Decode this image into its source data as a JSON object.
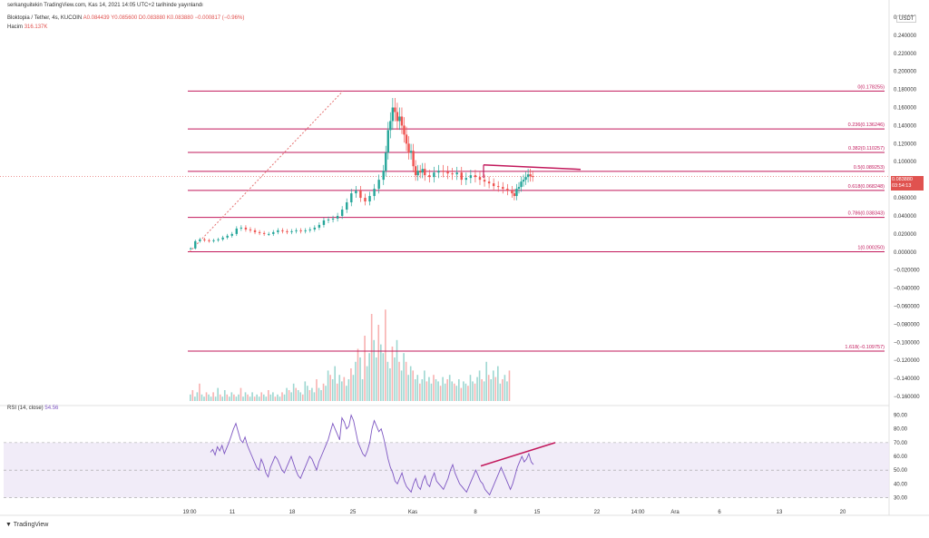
{
  "header": {
    "published": "serkanguitekin TradingView.com, Kas 14, 2021 14:05 UTC+2 tarihinde yayınlandı",
    "symbol": "Bloktopia / Tether, 4s, KUCOIN",
    "ohlc": "A0.084439 Y0.085600 D0.083880 K0.083880 −0.000817 (−0.96%)",
    "volume_label": "Hacim",
    "volume_value": "316.137K"
  },
  "currency_badge": "USDT",
  "last_price": {
    "value": "0.083880",
    "countdown": "03:54:13"
  },
  "footer_brand": "TradingView",
  "colors": {
    "up": "#26a69a",
    "down": "#ef5350",
    "fib": "#c2185b",
    "rsi_line": "#7e57c2",
    "rsi_band": "#ede7f6",
    "trend": "#c2185b",
    "price_line": "#e0524f"
  },
  "chart_data": [
    {
      "type": "candlestick",
      "name": "price",
      "x_ticks": [
        "19:00",
        "11",
        "18",
        "25",
        "Kas",
        "8",
        "15",
        "22",
        "14:00",
        "Ara",
        "6",
        "13",
        "20"
      ],
      "y_ticks": [
        "0.260000",
        "0.240000",
        "0.220000",
        "0.200000",
        "0.180000",
        "0.160000",
        "0.140000",
        "0.120000",
        "0.100000",
        "0.080000",
        "0.060000",
        "0.040000",
        "0.020000",
        "0.000000",
        "−0.020000",
        "−0.040000",
        "−0.060000",
        "−0.080000",
        "−0.100000",
        "−0.120000",
        "−0.140000",
        "−0.160000"
      ],
      "ylim": [
        -0.168,
        0.265
      ],
      "fib_levels": [
        {
          "label": "0(0.178255)",
          "value": 0.178255
        },
        {
          "label": "0.236(0.136246)",
          "value": 0.136246
        },
        {
          "label": "0.382(0.110257)",
          "value": 0.110257
        },
        {
          "label": "0.5(0.089253)",
          "value": 0.089253
        },
        {
          "label": "0.618(0.068248)",
          "value": 0.068248
        },
        {
          "label": "0.786(0.038343)",
          "value": 0.038343
        },
        {
          "label": "1(0.000250)",
          "value": 0.00025
        },
        {
          "label": "1.618(−0.109757)",
          "value": -0.109757
        }
      ],
      "close_path": [
        [
          0,
          0.004
        ],
        [
          2,
          0.012
        ],
        [
          4,
          0.014
        ],
        [
          6,
          0.013
        ],
        [
          8,
          0.012
        ],
        [
          10,
          0.013
        ],
        [
          12,
          0.014
        ],
        [
          14,
          0.016
        ],
        [
          16,
          0.018
        ],
        [
          18,
          0.02
        ],
        [
          20,
          0.026
        ],
        [
          22,
          0.027
        ],
        [
          24,
          0.025
        ],
        [
          26,
          0.024
        ],
        [
          28,
          0.022
        ],
        [
          30,
          0.021
        ],
        [
          32,
          0.02
        ],
        [
          34,
          0.02
        ],
        [
          36,
          0.022
        ],
        [
          38,
          0.024
        ],
        [
          40,
          0.023
        ],
        [
          42,
          0.022
        ],
        [
          44,
          0.023
        ],
        [
          46,
          0.024
        ],
        [
          48,
          0.023
        ],
        [
          50,
          0.024
        ],
        [
          52,
          0.025
        ],
        [
          54,
          0.027
        ],
        [
          56,
          0.03
        ],
        [
          58,
          0.035
        ],
        [
          60,
          0.036
        ],
        [
          62,
          0.037
        ],
        [
          64,
          0.04
        ],
        [
          66,
          0.047
        ],
        [
          68,
          0.055
        ],
        [
          70,
          0.065
        ],
        [
          72,
          0.068
        ],
        [
          74,
          0.06
        ],
        [
          76,
          0.056
        ],
        [
          78,
          0.062
        ],
        [
          80,
          0.07
        ],
        [
          82,
          0.08
        ],
        [
          84,
          0.09
        ],
        [
          85,
          0.11
        ],
        [
          86,
          0.135
        ],
        [
          87,
          0.145
        ],
        [
          88,
          0.16
        ],
        [
          89,
          0.155
        ],
        [
          90,
          0.145
        ],
        [
          91,
          0.15
        ],
        [
          92,
          0.14
        ],
        [
          93,
          0.13
        ],
        [
          94,
          0.12
        ],
        [
          95,
          0.11
        ],
        [
          96,
          0.112
        ],
        [
          97,
          0.095
        ],
        [
          98,
          0.085
        ],
        [
          99,
          0.09
        ],
        [
          100,
          0.088
        ],
        [
          101,
          0.092
        ],
        [
          102,
          0.085
        ],
        [
          104,
          0.083
        ],
        [
          106,
          0.088
        ],
        [
          108,
          0.09
        ],
        [
          110,
          0.089
        ],
        [
          112,
          0.087
        ],
        [
          114,
          0.086
        ],
        [
          116,
          0.088
        ],
        [
          118,
          0.08
        ],
        [
          120,
          0.082
        ],
        [
          122,
          0.085
        ],
        [
          124,
          0.083
        ],
        [
          126,
          0.08
        ],
        [
          128,
          0.078
        ],
        [
          130,
          0.076
        ],
        [
          132,
          0.073
        ],
        [
          134,
          0.072
        ],
        [
          136,
          0.07
        ],
        [
          138,
          0.068
        ],
        [
          140,
          0.065
        ],
        [
          141,
          0.062
        ],
        [
          142,
          0.07
        ],
        [
          143,
          0.072
        ],
        [
          144,
          0.078
        ],
        [
          145,
          0.08
        ],
        [
          146,
          0.083
        ],
        [
          147,
          0.086
        ],
        [
          148,
          0.084
        ],
        [
          149,
          0.0839
        ]
      ],
      "volume_heights": [
        3,
        5,
        2,
        4,
        8,
        3,
        2,
        4,
        3,
        2,
        4,
        2,
        6,
        3,
        2,
        5,
        3,
        2,
        4,
        3,
        2,
        3,
        6,
        2,
        4,
        3,
        2,
        4,
        2,
        3,
        2,
        4,
        3,
        2,
        5,
        3,
        4,
        2,
        3,
        2,
        4,
        3,
        6,
        5,
        4,
        8,
        6,
        5,
        4,
        3,
        9,
        7,
        5,
        6,
        4,
        10,
        6,
        5,
        8,
        7,
        14,
        12,
        10,
        16,
        8,
        12,
        9,
        11,
        7,
        10,
        15,
        12,
        18,
        24,
        20,
        10,
        30,
        16,
        22,
        40,
        28,
        20,
        35,
        26,
        22,
        42,
        18,
        15,
        25,
        20,
        28,
        18,
        14,
        22,
        18,
        12,
        16,
        14,
        10,
        12,
        8,
        10,
        14,
        9,
        11,
        8,
        12,
        10,
        9,
        7,
        11,
        8,
        10,
        12,
        9,
        8,
        7,
        10,
        6,
        9,
        8,
        7,
        12,
        9,
        8,
        11,
        14,
        10,
        9,
        18,
        12,
        10,
        14,
        11,
        16,
        8,
        10,
        12,
        9,
        14
      ]
    },
    {
      "type": "line",
      "name": "RSI",
      "label": "RSI (14, close)",
      "last_value": "54.56",
      "y_ticks": [
        "90.00",
        "80.00",
        "70.00",
        "60.00",
        "50.00",
        "40.00",
        "30.00"
      ],
      "ylim": [
        27,
        95
      ],
      "bands": [
        30,
        50,
        70
      ],
      "values": [
        63,
        65,
        61,
        67,
        64,
        68,
        62,
        66,
        70,
        75,
        80,
        84,
        78,
        72,
        70,
        74,
        68,
        64,
        60,
        56,
        52,
        50,
        58,
        54,
        48,
        45,
        52,
        56,
        60,
        58,
        54,
        50,
        48,
        52,
        56,
        60,
        55,
        50,
        46,
        44,
        48,
        52,
        56,
        60,
        58,
        54,
        50,
        56,
        60,
        64,
        68,
        72,
        78,
        84,
        80,
        76,
        72,
        88,
        85,
        80,
        82,
        90,
        86,
        78,
        70,
        66,
        62,
        60,
        64,
        70,
        80,
        86,
        82,
        78,
        80,
        74,
        66,
        58,
        52,
        48,
        42,
        40,
        44,
        48,
        42,
        38,
        36,
        34,
        40,
        44,
        38,
        36,
        42,
        46,
        40,
        38,
        44,
        48,
        42,
        40,
        38,
        36,
        40,
        44,
        50,
        54,
        48,
        44,
        40,
        38,
        36,
        34,
        38,
        42,
        46,
        50,
        46,
        42,
        40,
        36,
        34,
        32,
        36,
        40,
        44,
        48,
        52,
        48,
        44,
        40,
        36,
        40,
        46,
        52,
        56,
        60,
        56,
        58,
        62,
        56,
        54
      ]
    }
  ]
}
